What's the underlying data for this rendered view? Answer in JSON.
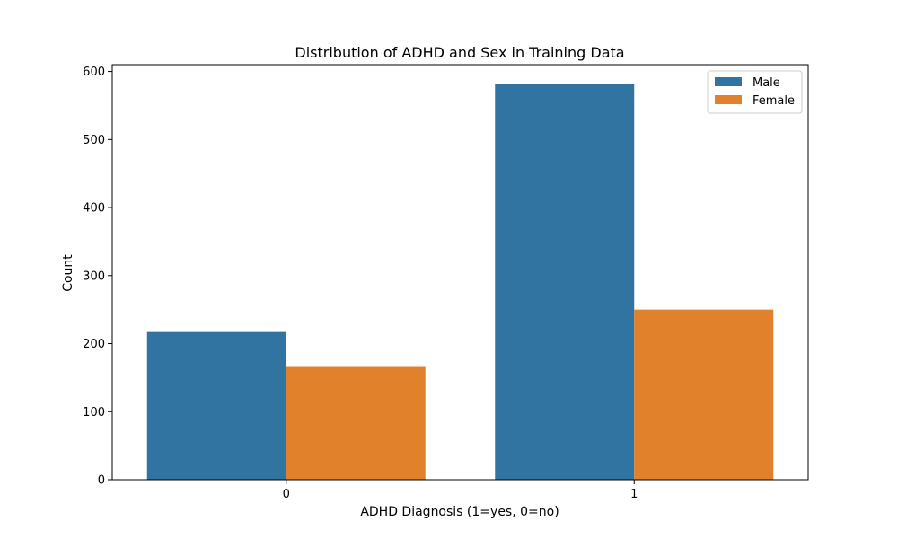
{
  "chart_data": {
    "type": "bar",
    "title": "Distribution of ADHD and Sex in Training Data",
    "xlabel": "ADHD Diagnosis (1=yes, 0=no)",
    "ylabel": "Count",
    "categories": [
      "0",
      "1"
    ],
    "series": [
      {
        "name": "Male",
        "color": "#3274a1",
        "values": [
          217,
          581
        ]
      },
      {
        "name": "Female",
        "color": "#e1812c",
        "values": [
          167,
          250
        ]
      }
    ],
    "ylim": [
      0,
      610
    ],
    "yticks": [
      0,
      100,
      200,
      300,
      400,
      500,
      600
    ],
    "grid": false,
    "legend_position": "top-right"
  }
}
